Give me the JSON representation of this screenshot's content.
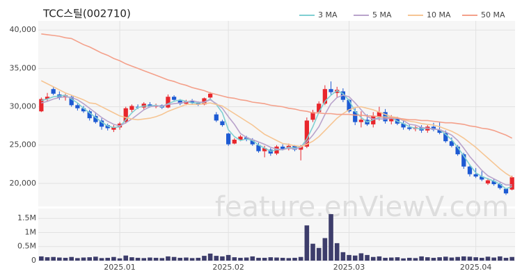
{
  "watermark": "feature.enViewV.com",
  "chart_data": [
    {
      "type": "candlestick",
      "title": "TCC스틸(002710)",
      "categories": [
        null,
        null,
        null,
        null,
        null,
        null,
        null,
        null,
        null,
        null,
        null,
        null,
        null,
        "2025.01",
        null,
        null,
        null,
        null,
        null,
        null,
        null,
        null,
        null,
        null,
        null,
        null,
        null,
        null,
        null,
        null,
        null,
        "2025.02",
        null,
        null,
        null,
        null,
        null,
        null,
        null,
        null,
        null,
        null,
        null,
        null,
        null,
        null,
        null,
        null,
        null,
        null,
        null,
        "2025.03",
        null,
        null,
        null,
        null,
        null,
        null,
        null,
        null,
        null,
        null,
        null,
        null,
        null,
        null,
        null,
        null,
        null,
        null,
        null,
        null,
        "2025.04",
        null,
        null,
        null,
        null,
        null,
        null
      ],
      "open": [
        29400,
        31000,
        32300,
        31600,
        31200,
        31300,
        30200,
        29800,
        29400,
        28800,
        28200,
        27600,
        27000,
        27300,
        28000,
        29600,
        30000,
        29900,
        30300,
        30000,
        30200,
        29900,
        31300,
        30800,
        30400,
        30700,
        30500,
        30300,
        31200,
        29000,
        28100,
        26500,
        25200,
        25700,
        26000,
        25700,
        25000,
        24200,
        24400,
        23900,
        24800,
        24500,
        24900,
        24400,
        24800,
        28300,
        29300,
        30400,
        32300,
        31800,
        32000,
        30900,
        29400,
        28000,
        28300,
        27700,
        28700,
        29300,
        28100,
        28400,
        27800,
        27300,
        27100,
        27300,
        26900,
        27400,
        27000,
        26600,
        25500,
        24800,
        23800,
        22200,
        21200,
        20900,
        20000,
        20300,
        19900,
        19300,
        19200
      ],
      "high": [
        31200,
        31800,
        32600,
        32000,
        31700,
        31500,
        30500,
        30100,
        29600,
        29300,
        28500,
        27800,
        27600,
        28000,
        30000,
        30300,
        30300,
        30600,
        30600,
        30400,
        30300,
        31600,
        31500,
        31000,
        30900,
        31000,
        30700,
        31200,
        31900,
        29300,
        28300,
        26600,
        25900,
        26300,
        26200,
        25900,
        25300,
        24900,
        24600,
        25000,
        25100,
        25200,
        25000,
        25000,
        28600,
        29600,
        30700,
        32800,
        33300,
        32600,
        32400,
        31000,
        29800,
        29400,
        29000,
        29300,
        30000,
        29700,
        28900,
        28700,
        28200,
        27700,
        27500,
        27600,
        27600,
        27900,
        28000,
        26900,
        26000,
        25000,
        24000,
        22500,
        22000,
        21600,
        20700,
        20600,
        20100,
        19400,
        21000
      ],
      "low": [
        29300,
        30700,
        31500,
        30900,
        30800,
        30000,
        29500,
        29200,
        28200,
        27800,
        27000,
        26900,
        26700,
        27000,
        27800,
        29300,
        29700,
        29600,
        29900,
        29800,
        29700,
        29800,
        30800,
        30200,
        30200,
        30300,
        30100,
        30200,
        30900,
        28000,
        27400,
        24900,
        25100,
        25500,
        25500,
        24900,
        24000,
        23400,
        23600,
        23700,
        24300,
        24300,
        24200,
        23000,
        24600,
        28000,
        29100,
        30200,
        31500,
        31200,
        30600,
        29200,
        27600,
        27300,
        27500,
        27300,
        28200,
        27800,
        27700,
        27600,
        27000,
        26900,
        26800,
        26600,
        26600,
        26800,
        26400,
        25300,
        24700,
        23600,
        21900,
        20900,
        20700,
        20300,
        19800,
        19700,
        19200,
        18500,
        19100
      ],
      "close": [
        31000,
        31300,
        31700,
        31200,
        31500,
        30200,
        29800,
        29400,
        28500,
        28000,
        27400,
        27200,
        27300,
        27800,
        29800,
        30100,
        29900,
        30400,
        30000,
        30100,
        29900,
        31300,
        30900,
        30400,
        30700,
        30500,
        30300,
        31100,
        31700,
        28200,
        27600,
        25100,
        25700,
        26100,
        25700,
        25100,
        24200,
        24600,
        23900,
        24800,
        24500,
        24900,
        24400,
        24800,
        28200,
        29300,
        30400,
        32300,
        31900,
        32200,
        30900,
        29400,
        28000,
        28300,
        27700,
        28800,
        29300,
        28100,
        28400,
        27800,
        27300,
        27100,
        27300,
        26900,
        27400,
        27000,
        26600,
        25500,
        24900,
        23800,
        22200,
        21200,
        20900,
        20500,
        20400,
        19900,
        19400,
        18700,
        20800
      ],
      "up_color": "#e8262c",
      "down_color": "#1d5ad3",
      "series": [
        {
          "name": "3 MA",
          "color": "#7fcfd2",
          "values": [
            30800,
            31000,
            31300,
            31400,
            31500,
            31000,
            30500,
            29800,
            29200,
            28600,
            28000,
            27500,
            27300,
            27400,
            28300,
            29200,
            29900,
            30100,
            30100,
            30200,
            30000,
            30400,
            30700,
            30900,
            30700,
            30500,
            30500,
            30600,
            31000,
            30300,
            29200,
            27000,
            26100,
            25600,
            25800,
            25600,
            25000,
            24600,
            24200,
            24400,
            24400,
            24700,
            24600,
            24700,
            25800,
            27400,
            29300,
            30700,
            31500,
            32100,
            31700,
            30800,
            29400,
            28600,
            28000,
            28300,
            28600,
            28700,
            28600,
            28100,
            27800,
            27400,
            27200,
            27100,
            27200,
            27100,
            27000,
            26400,
            25700,
            24700,
            23600,
            22400,
            21400,
            20900,
            20600,
            20300,
            19900,
            19300,
            19600
          ]
        },
        {
          "name": "5 MA",
          "color": "#b9a3cb",
          "values": [
            30500,
            30700,
            31000,
            31200,
            31300,
            31200,
            30900,
            30400,
            29800,
            29200,
            28600,
            28100,
            27700,
            27500,
            27900,
            28400,
            29000,
            29600,
            30000,
            30100,
            30100,
            30300,
            30400,
            30500,
            30600,
            30800,
            30600,
            30600,
            30900,
            30400,
            29800,
            28700,
            27700,
            26500,
            26000,
            25700,
            25400,
            25100,
            24700,
            24500,
            24400,
            24600,
            24500,
            24700,
            25400,
            26300,
            27400,
            29000,
            30400,
            31200,
            31500,
            31300,
            30500,
            29600,
            28700,
            28400,
            28400,
            28400,
            28500,
            28500,
            28200,
            27700,
            27600,
            27300,
            27200,
            27100,
            27000,
            26700,
            26300,
            25600,
            24600,
            23500,
            22600,
            21700,
            21000,
            20600,
            20200,
            19800,
            19800
          ]
        },
        {
          "name": "10 MA",
          "color": "#f6c593",
          "values": [
            33400,
            33000,
            32600,
            32200,
            31800,
            31500,
            31200,
            30900,
            30500,
            30400,
            30000,
            29600,
            29200,
            28800,
            28600,
            28400,
            28300,
            28400,
            28500,
            28700,
            29000,
            29400,
            29700,
            30000,
            30300,
            30300,
            30300,
            30400,
            30500,
            30300,
            30100,
            29600,
            29100,
            28600,
            28100,
            27600,
            27000,
            26400,
            26000,
            25600,
            25200,
            25100,
            24900,
            24800,
            25100,
            25500,
            26100,
            26900,
            27700,
            28500,
            29100,
            29600,
            29900,
            30000,
            29800,
            29600,
            29300,
            29000,
            28700,
            28600,
            28300,
            28100,
            28000,
            27800,
            27700,
            27600,
            27400,
            27100,
            26800,
            26400,
            25900,
            25300,
            24700,
            24000,
            23300,
            22600,
            21900,
            21300,
            20800
          ]
        },
        {
          "name": "50 MA",
          "color": "#f4a08a",
          "values": [
            39500,
            39400,
            39300,
            39200,
            39000,
            38900,
            38500,
            38100,
            37800,
            37400,
            37000,
            36700,
            36300,
            36000,
            35600,
            35300,
            35000,
            34700,
            34400,
            34100,
            33800,
            33500,
            33300,
            33000,
            32800,
            32500,
            32300,
            32100,
            31800,
            31600,
            31400,
            31200,
            31100,
            30900,
            30800,
            30600,
            30500,
            30400,
            30200,
            30100,
            30000,
            29800,
            29700,
            29500,
            29400,
            29200,
            29200,
            29100,
            29100,
            29000,
            29000,
            29000,
            28900,
            28900,
            28800,
            28800,
            28700,
            28600,
            28600,
            28500,
            28400,
            28300,
            28300,
            28200,
            28200,
            28100,
            28000,
            27900,
            27900,
            27800,
            27700,
            27500,
            27400,
            27200,
            27100,
            26900,
            26600,
            26300,
            25900
          ]
        }
      ],
      "ylim": [
        17000,
        41200
      ],
      "yticks": [
        {
          "value": 20000,
          "label": "20,000"
        },
        {
          "value": 25000,
          "label": "25,000"
        },
        {
          "value": 30000,
          "label": "30,000"
        },
        {
          "value": 35000,
          "label": "35,000"
        },
        {
          "value": 40000,
          "label": "40,000"
        }
      ],
      "grid": true,
      "legend": "top-right"
    },
    {
      "type": "bar",
      "color": "#3d3d6b",
      "values": [
        150000,
        120000,
        130000,
        110000,
        100000,
        130000,
        90000,
        110000,
        120000,
        140000,
        90000,
        100000,
        130000,
        80000,
        180000,
        120000,
        100000,
        90000,
        110000,
        100000,
        90000,
        150000,
        130000,
        100000,
        110000,
        90000,
        100000,
        170000,
        250000,
        170000,
        150000,
        200000,
        120000,
        100000,
        110000,
        150000,
        100000,
        100000,
        120000,
        110000,
        100000,
        90000,
        100000,
        130000,
        1250000,
        600000,
        450000,
        800000,
        1650000,
        620000,
        300000,
        200000,
        180000,
        260000,
        200000,
        130000,
        150000,
        100000,
        110000,
        120000,
        80000,
        100000,
        90000,
        150000,
        120000,
        100000,
        120000,
        140000,
        110000,
        130000,
        150000,
        140000,
        120000,
        100000,
        140000,
        110000,
        150000,
        100000,
        130000
      ],
      "ylim": [
        0,
        1850000
      ],
      "yticks": [
        0,
        {
          "value": 500000,
          "label": "0.5M"
        },
        {
          "value": 1000000,
          "label": "1M"
        },
        {
          "value": 1500000,
          "label": "1.5M"
        }
      ],
      "grid": true
    }
  ]
}
